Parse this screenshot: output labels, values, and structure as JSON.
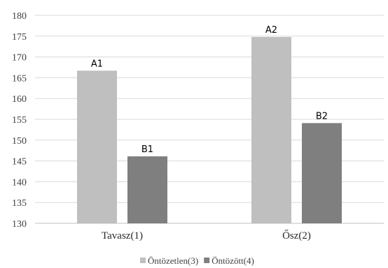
{
  "chart_data": {
    "type": "bar",
    "categories": [
      "Tavasz(1)",
      "Ősz(2)"
    ],
    "series": [
      {
        "name": "Öntözetlen(3)",
        "color": "#bfbfbf",
        "values": [
          166.7,
          174.8
        ],
        "labels": [
          "A1",
          "A2"
        ]
      },
      {
        "name": "Öntözött(4)",
        "color": "#7f7f7f",
        "values": [
          146.1,
          154.1
        ],
        "labels": [
          "B1",
          "B2"
        ]
      }
    ],
    "ylim": [
      130,
      180
    ],
    "yticks": [
      130,
      135,
      140,
      145,
      150,
      155,
      160,
      165,
      170,
      175,
      180
    ],
    "grid": true,
    "gridColor": "#d9d9d9",
    "legend_position": "bottom"
  }
}
